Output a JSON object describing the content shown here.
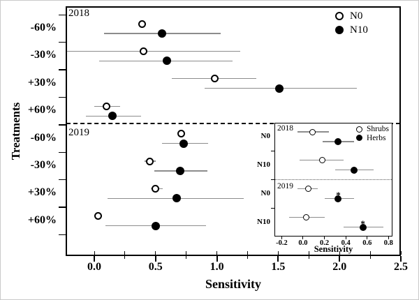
{
  "colors": {
    "marker_fill": "#000000",
    "marker_open_fill": "#ffffff",
    "error_bar": "#8c8c8c",
    "axis": "#000000",
    "background": "#ffffff"
  },
  "significance_symbol": "*",
  "chart_data": [
    {
      "id": "main",
      "type": "scatter",
      "title": "",
      "xlabel": "Sensitivity",
      "ylabel": "Treatments",
      "xlim": [
        -0.2335,
        2.5
      ],
      "x_major_ticks": [
        0.0,
        0.5,
        1.0,
        1.5,
        2.0,
        2.5
      ],
      "x_tick_labels": [
        "0.0",
        "0.5",
        "1.0",
        "1.5",
        "2.0",
        "2.5"
      ],
      "x_minor_step": 0.25,
      "grid": false,
      "sections": [
        {
          "label": "2018"
        },
        {
          "label": "2019"
        }
      ],
      "divider": {
        "style": "dashed",
        "after_group_index": 3
      },
      "legend": {
        "position": "top-right",
        "entries": [
          {
            "label": "N0",
            "marker": "open-circle"
          },
          {
            "label": "N10",
            "marker": "filled-circle"
          }
        ]
      },
      "series_names": [
        "N0",
        "N10"
      ],
      "groups": [
        {
          "year": "2018",
          "treatment": "-60%",
          "N0": {
            "value": 0.39,
            "ci": null
          },
          "N10": {
            "value": 0.55,
            "ci": [
              0.08,
              1.03
            ]
          }
        },
        {
          "year": "2018",
          "treatment": "-30%",
          "N0": {
            "value": 0.4,
            "ci": [
              -0.24,
              1.19
            ]
          },
          "N10": {
            "value": 0.59,
            "ci": [
              0.04,
              1.13
            ]
          }
        },
        {
          "year": "2018",
          "treatment": "+30%",
          "N0": {
            "value": 0.98,
            "ci": [
              0.63,
              1.32
            ]
          },
          "N10": {
            "value": 1.51,
            "ci": [
              0.9,
              2.14
            ]
          }
        },
        {
          "year": "2018",
          "treatment": "+60%",
          "N0": {
            "value": 0.1,
            "ci": [
              0.0,
              0.21
            ]
          },
          "N10": {
            "value": 0.15,
            "ci": [
              -0.07,
              0.38
            ]
          }
        },
        {
          "year": "2019",
          "treatment": "-60%",
          "N0": {
            "value": 0.71,
            "ci": null
          },
          "N10": {
            "value": 0.73,
            "ci": [
              0.55,
              0.93
            ]
          }
        },
        {
          "year": "2019",
          "treatment": "-30%",
          "N0": {
            "value": 0.45,
            "ci": [
              0.41,
              0.5
            ]
          },
          "N10": {
            "value": 0.7,
            "ci": [
              0.49,
              0.92
            ]
          }
        },
        {
          "year": "2019",
          "treatment": "+30%",
          "N0": {
            "value": 0.5,
            "ci": [
              0.46,
              0.56
            ]
          },
          "N10": {
            "value": 0.67,
            "ci": [
              0.11,
              1.22
            ]
          }
        },
        {
          "year": "2019",
          "treatment": "+60%",
          "N0": {
            "value": 0.03,
            "ci": null
          },
          "N10": {
            "value": 0.5,
            "ci": [
              0.09,
              0.91
            ]
          }
        }
      ]
    },
    {
      "id": "inset",
      "type": "scatter",
      "title": "",
      "xlabel": "Sensitivity",
      "ylabel": "",
      "xlim": [
        -0.268,
        0.837
      ],
      "x_major_ticks": [
        -0.2,
        0.0,
        0.2,
        0.4,
        0.6,
        0.8
      ],
      "x_tick_labels": [
        "-0.2",
        "0.0",
        "0.2",
        "0.4",
        "0.6",
        "0.8"
      ],
      "grid": false,
      "sections": [
        {
          "label": "2018"
        },
        {
          "label": "2019"
        }
      ],
      "divider": {
        "style": "dotted",
        "after_group_index": 1
      },
      "legend": {
        "position": "top-right",
        "entries": [
          {
            "label": "Shrubs",
            "marker": "open-circle"
          },
          {
            "label": "Herbs",
            "marker": "filled-circle"
          }
        ]
      },
      "series_names": [
        "Shrubs",
        "Herbs"
      ],
      "groups": [
        {
          "year": "2018",
          "n_level": "N0",
          "Shrubs": {
            "value": 0.09,
            "ci": [
              -0.05,
              0.24
            ],
            "significant": false
          },
          "Herbs": {
            "value": 0.33,
            "ci": [
              0.18,
              0.48
            ],
            "significant": false
          }
        },
        {
          "year": "2018",
          "n_level": "N10",
          "Shrubs": {
            "value": 0.18,
            "ci": [
              -0.03,
              0.38
            ],
            "significant": false
          },
          "Herbs": {
            "value": 0.48,
            "ci": [
              0.3,
              0.66
            ],
            "significant": false
          }
        },
        {
          "year": "2019",
          "n_level": "N0",
          "Shrubs": {
            "value": 0.05,
            "ci": [
              -0.05,
              0.14
            ],
            "significant": false
          },
          "Herbs": {
            "value": 0.33,
            "ci": [
              0.2,
              0.48
            ],
            "significant": true
          }
        },
        {
          "year": "2019",
          "n_level": "N10",
          "Shrubs": {
            "value": 0.03,
            "ci": [
              -0.13,
              0.2
            ],
            "significant": false
          },
          "Herbs": {
            "value": 0.56,
            "ci": [
              0.38,
              0.75
            ],
            "significant": true
          }
        }
      ]
    }
  ]
}
